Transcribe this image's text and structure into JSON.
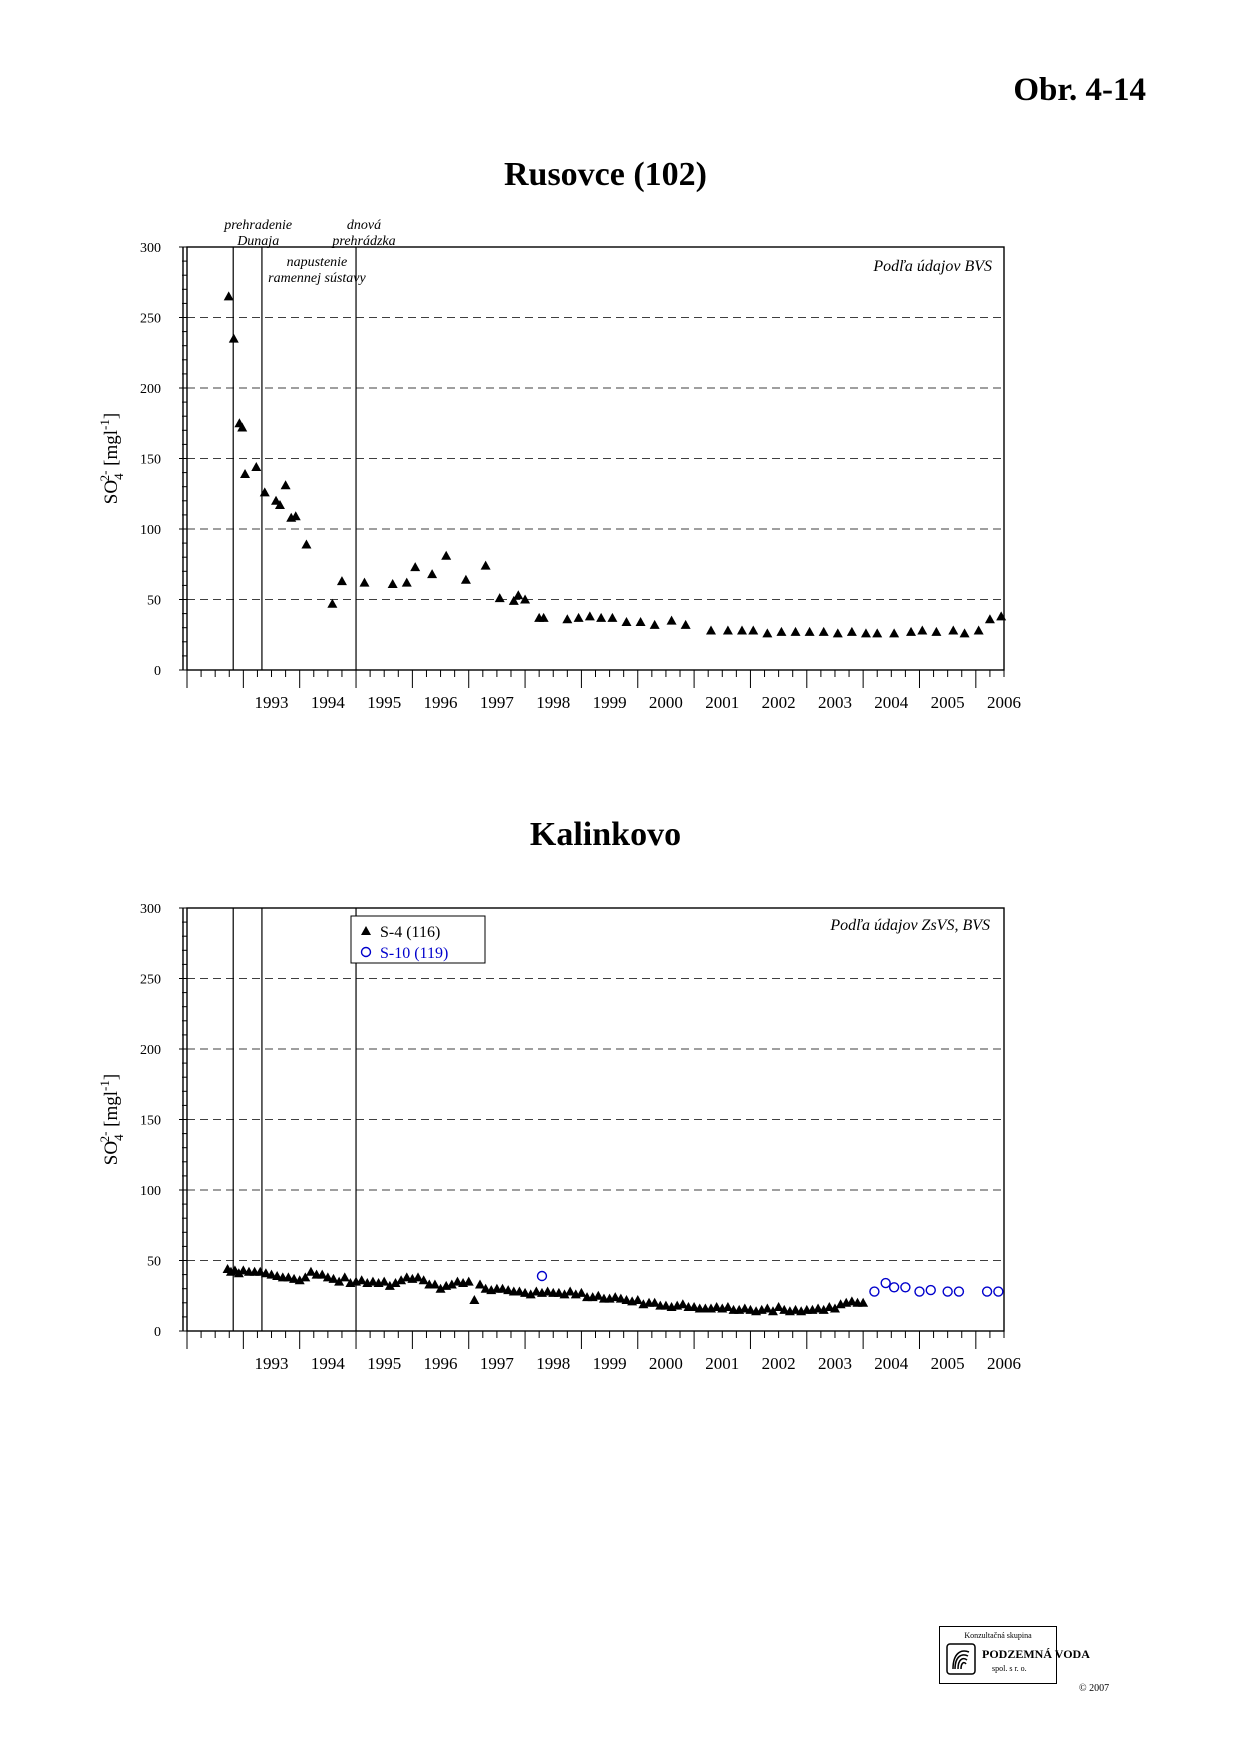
{
  "page": {
    "figure_number": "Obr. 4-14"
  },
  "chart_data": [
    {
      "type": "scatter",
      "title": "Rusovce (102)",
      "source_note": "Podľa údajov BVS",
      "ylabel": "SO4 2- [mgl-1]",
      "ylabel_parts": {
        "base": "SO",
        "sub": "4",
        "sup": "2-",
        "unit_open": " [mgl",
        "unit_sup": "-1",
        "unit_close": "]"
      },
      "ylim": [
        0,
        300
      ],
      "yticks": [
        0,
        50,
        100,
        150,
        200,
        250,
        300
      ],
      "xlim": [
        1992.0,
        2006.5
      ],
      "x_tick_labels": [
        "1993",
        "1994",
        "1995",
        "1996",
        "1997",
        "1998",
        "1999",
        "2000",
        "2001",
        "2002",
        "2003",
        "2004",
        "2005",
        "2006"
      ],
      "grid": "horizontal dashed",
      "event_lines": [
        {
          "x": 1992.82,
          "label_lines": [
            "prehradenie",
            "Dunaja"
          ]
        },
        {
          "x": 1993.33,
          "label_lines": [
            "napustenie",
            "ramennej sústavy"
          ]
        },
        {
          "x": 1995.0,
          "label_lines": [
            "dnová",
            "prehrádzka"
          ]
        }
      ],
      "series": [
        {
          "name": "Rusovce (102)",
          "marker": "triangle",
          "color": "#000000",
          "x": [
            1992.74,
            1992.83,
            1992.93,
            1992.98,
            1993.03,
            1993.23,
            1993.38,
            1993.58,
            1993.65,
            1993.75,
            1993.85,
            1993.93,
            1994.12,
            1994.58,
            1994.75,
            1995.15,
            1995.65,
            1995.9,
            1996.05,
            1996.35,
            1996.6,
            1996.95,
            1997.3,
            1997.55,
            1997.8,
            1997.88,
            1998.0,
            1998.25,
            1998.33,
            1998.75,
            1998.95,
            1999.15,
            1999.35,
            1999.55,
            1999.8,
            2000.05,
            2000.3,
            2000.6,
            2000.85,
            2001.3,
            2001.6,
            2001.85,
            2002.05,
            2002.3,
            2002.55,
            2002.8,
            2003.05,
            2003.3,
            2003.55,
            2003.8,
            2004.05,
            2004.25,
            2004.55,
            2004.85,
            2005.05,
            2005.3,
            2005.6,
            2005.8,
            2006.05,
            2006.25
          ],
          "y": [
            265,
            235,
            175,
            172,
            139,
            144,
            126,
            120,
            117,
            131,
            108,
            109,
            89,
            47,
            63,
            62,
            61,
            62,
            73,
            68,
            81,
            64,
            74,
            51,
            49,
            53,
            50,
            37,
            37,
            36,
            37,
            38,
            37,
            37,
            34,
            34,
            32,
            35,
            32,
            28,
            28,
            28,
            28,
            26,
            27,
            27,
            27,
            27,
            26,
            27,
            26,
            26,
            26,
            27,
            28,
            27,
            28,
            26,
            28,
            36
          ]
        },
        {
          "name": "Rusovce (102)",
          "marker": "triangle",
          "color": "#000000",
          "x": [
            2006.45
          ],
          "y": [
            38
          ]
        }
      ]
    },
    {
      "type": "scatter",
      "title": "Kalinkovo",
      "source_note": "Podľa údajov ZsVS, BVS",
      "ylabel": "SO4 2- [mgl-1]",
      "ylabel_parts": {
        "base": "SO",
        "sub": "4",
        "sup": "2-",
        "unit_open": " [mgl",
        "unit_sup": "-1",
        "unit_close": "]"
      },
      "ylim": [
        0,
        300
      ],
      "yticks": [
        0,
        50,
        100,
        150,
        200,
        250,
        300
      ],
      "xlim": [
        1992.0,
        2006.5
      ],
      "x_tick_labels": [
        "1993",
        "1994",
        "1995",
        "1996",
        "1997",
        "1998",
        "1999",
        "2000",
        "2001",
        "2002",
        "2003",
        "2004",
        "2005",
        "2006"
      ],
      "grid": "horizontal dashed",
      "legend_position": "top-left",
      "event_lines": [
        {
          "x": 1992.82,
          "label_lines": []
        },
        {
          "x": 1993.33,
          "label_lines": []
        },
        {
          "x": 1995.0,
          "label_lines": []
        }
      ],
      "series": [
        {
          "name": "S-4 (116)",
          "marker": "triangle",
          "color": "#000000",
          "x": [
            1992.72,
            1992.78,
            1992.85,
            1992.92,
            1993.0,
            1993.1,
            1993.2,
            1993.3,
            1993.4,
            1993.5,
            1993.6,
            1993.7,
            1993.8,
            1993.9,
            1994.0,
            1994.1,
            1994.2,
            1994.3,
            1994.4,
            1994.5,
            1994.6,
            1994.7,
            1994.8,
            1994.9,
            1995.0,
            1995.1,
            1995.2,
            1995.3,
            1995.4,
            1995.5,
            1995.6,
            1995.7,
            1995.8,
            1995.9,
            1996.0,
            1996.1,
            1996.2,
            1996.3,
            1996.4,
            1996.5,
            1996.6,
            1996.7,
            1996.8,
            1996.9,
            1997.0,
            1997.1,
            1997.2,
            1997.3,
            1997.4,
            1997.5,
            1997.6,
            1997.7,
            1997.8,
            1997.9,
            1998.0,
            1998.1,
            1998.2,
            1998.3,
            1998.4,
            1998.5,
            1998.6,
            1998.7,
            1998.8,
            1998.9,
            1999.0,
            1999.1,
            1999.2,
            1999.3,
            1999.4,
            1999.5,
            1999.6,
            1999.7,
            1999.8,
            1999.9,
            2000.0,
            2000.1,
            2000.2,
            2000.3,
            2000.4,
            2000.5,
            2000.6,
            2000.7,
            2000.8,
            2000.9,
            2001.0,
            2001.1,
            2001.2,
            2001.3,
            2001.4,
            2001.5,
            2001.6,
            2001.7,
            2001.8,
            2001.9,
            2002.0,
            2002.1,
            2002.2,
            2002.3,
            2002.4,
            2002.5,
            2002.6,
            2002.7,
            2002.8,
            2002.9,
            2003.0,
            2003.1,
            2003.2,
            2003.3,
            2003.4,
            2003.5,
            2003.6,
            2003.7,
            2003.8,
            2003.9,
            2004.0
          ],
          "y": [
            44,
            42,
            43,
            41,
            43,
            42,
            42,
            42,
            41,
            40,
            39,
            38,
            38,
            37,
            36,
            38,
            42,
            40,
            40,
            38,
            37,
            35,
            38,
            34,
            35,
            36,
            34,
            35,
            34,
            35,
            32,
            34,
            36,
            38,
            37,
            38,
            36,
            33,
            33,
            30,
            32,
            33,
            35,
            34,
            35,
            22,
            33,
            30,
            29,
            30,
            30,
            29,
            28,
            28,
            27,
            26,
            28,
            27,
            28,
            27,
            27,
            26,
            28,
            26,
            27,
            24,
            24,
            25,
            23,
            23,
            24,
            23,
            22,
            21,
            22,
            19,
            20,
            20,
            18,
            18,
            17,
            18,
            19,
            17,
            17,
            16,
            16,
            16,
            17,
            16,
            17,
            15,
            15,
            16,
            15,
            14,
            15,
            16,
            14,
            17,
            15,
            14,
            15,
            14,
            15,
            15,
            16,
            15,
            17,
            16,
            19,
            20,
            21,
            20,
            20
          ]
        },
        {
          "name": "S-10 (119)",
          "marker": "circle",
          "color": "#0000cc",
          "x": [
            1998.3,
            2004.2,
            2004.4,
            2004.55,
            2004.75,
            2005.0,
            2005.2,
            2005.5,
            2005.7,
            2006.2,
            2006.4
          ],
          "y": [
            39,
            28,
            34,
            31,
            31,
            28,
            29,
            28,
            28,
            28,
            28
          ]
        }
      ]
    }
  ],
  "logo": {
    "top_line": "Konzultačná skupina",
    "name": "PODZEMNÁ VODA",
    "sub_line": "spol. s r. o.",
    "copyright": "© 2007"
  }
}
